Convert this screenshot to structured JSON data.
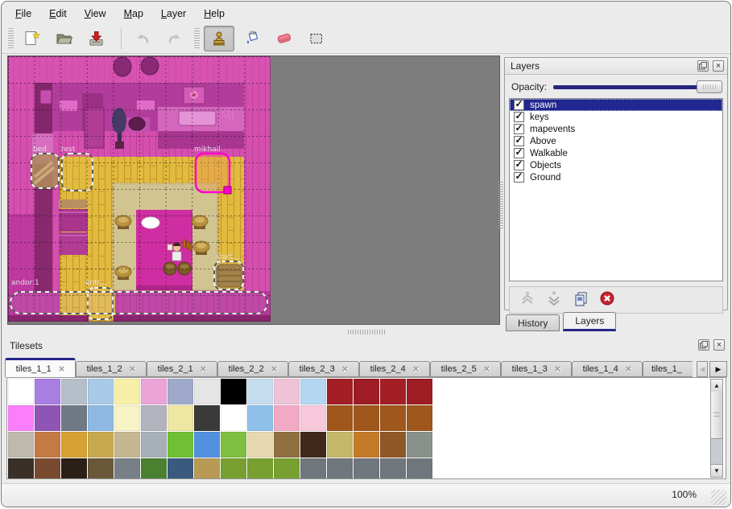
{
  "menu_bar": {
    "items": [
      {
        "mnemonic": "F",
        "rest": "ile"
      },
      {
        "mnemonic": "E",
        "rest": "dit"
      },
      {
        "mnemonic": "V",
        "rest": "iew"
      },
      {
        "mnemonic": "M",
        "rest": "ap"
      },
      {
        "mnemonic": "L",
        "rest": "ayer"
      },
      {
        "mnemonic": "H",
        "rest": "elp"
      }
    ]
  },
  "toolbar": {
    "buttons": [
      {
        "icon": "new-map-icon",
        "enabled": true
      },
      {
        "icon": "open-map-icon",
        "enabled": true
      },
      {
        "icon": "save-map-icon",
        "enabled": true
      },
      {
        "icon": "undo-icon",
        "enabled": false
      },
      {
        "icon": "redo-icon",
        "enabled": false
      },
      {
        "icon": "stamp-brush-icon",
        "enabled": true,
        "active": true
      },
      {
        "icon": "bucket-fill-icon",
        "enabled": true
      },
      {
        "icon": "eraser-icon",
        "enabled": true
      },
      {
        "icon": "rectangular-select-icon",
        "enabled": true
      }
    ]
  },
  "map_view": {
    "objects": [
      {
        "label": "bed"
      },
      {
        "label": "rest"
      },
      {
        "label": "mikhail",
        "selected": true
      },
      {
        "label": "start..."
      },
      {
        "label": "entr..."
      },
      {
        "label": "andor:1"
      }
    ]
  },
  "layers_panel": {
    "title": "Layers",
    "opacity_label": "Opacity:",
    "opacity_value": 100,
    "layers": [
      {
        "name": "spawn",
        "checked": true,
        "selected": true
      },
      {
        "name": "keys",
        "checked": true
      },
      {
        "name": "mapevents",
        "checked": true
      },
      {
        "name": "Above",
        "checked": true
      },
      {
        "name": "Walkable",
        "checked": true
      },
      {
        "name": "Objects",
        "checked": true
      },
      {
        "name": "Ground",
        "checked": true
      }
    ],
    "check_glyph": "✓",
    "tabs": [
      {
        "label": "History",
        "active": false
      },
      {
        "label": "Layers",
        "active": true
      }
    ]
  },
  "tilesets_panel": {
    "title": "Tilesets",
    "tabs": [
      {
        "label": "tiles_1_1",
        "selected": true
      },
      {
        "label": "tiles_1_2"
      },
      {
        "label": "tiles_2_1"
      },
      {
        "label": "tiles_2_2"
      },
      {
        "label": "tiles_2_3"
      },
      {
        "label": "tiles_2_4"
      },
      {
        "label": "tiles_2_5"
      },
      {
        "label": "tiles_1_3"
      },
      {
        "label": "tiles_1_4"
      },
      {
        "label": "tiles_1_",
        "truncated": true
      }
    ],
    "close_glyph": "×",
    "scroll_left_glyph": "◀",
    "scroll_right_glyph": "▶",
    "tile_colors": [
      [
        "#ffffff",
        "#a87fe0",
        "#b5bfc9",
        "#a9c9e8",
        "#f7efa5",
        "#eca3d8",
        "#9fa9c9",
        "#e5e5e5",
        "#000000",
        "#c6ddf0",
        "#eec3d5",
        "#b5d6f0",
        "#a31f26",
        "#9e1d24",
        "#a31f26",
        "#9e1d24"
      ],
      [
        "#fb7ffb",
        "#8f55b5",
        "#6f7a84",
        "#8fb9e3",
        "#f8f3c4",
        "#b3b3bd",
        "#efe6a3",
        "#3a3a38",
        "#ffffff",
        "#8fc0ea",
        "#f2aac4",
        "#f7c9da",
        "#a0571c",
        "#a0571c",
        "#a0571c",
        "#a0571c"
      ],
      [
        "#bdb9ad",
        "#c47a43",
        "#d6a233",
        "#c9a94f",
        "#c6b691",
        "#a7afb7",
        "#6fc033",
        "#5291e0",
        "#7fbf3f",
        "#e8d8af",
        "#8f7040",
        "#41291a",
        "#c6b668",
        "#c57a2a",
        "#8f5827",
        "#8a918a"
      ],
      [
        "#3a3027",
        "#7a4a30",
        "#2a2017",
        "#6a5838",
        "#778087",
        "#4a8030",
        "#3a5a80",
        "#b89a55",
        "#78a030",
        "#78a030",
        "#78a030",
        "#6f767c",
        "#6f767c",
        "#6f767c",
        "#6f767c",
        "#6f767c"
      ]
    ]
  },
  "status_bar": {
    "zoom_level": "100%"
  },
  "colors": {
    "selection_blue": "#20278e",
    "slider_track": "#26267e",
    "tab_accent": "#26268c",
    "object_selected_outline": "#ff00cc",
    "map_wall_magenta": "#d44fae",
    "map_floor_yellow": "#e2ba3e",
    "canvas_gray": "#7d7d7d"
  }
}
